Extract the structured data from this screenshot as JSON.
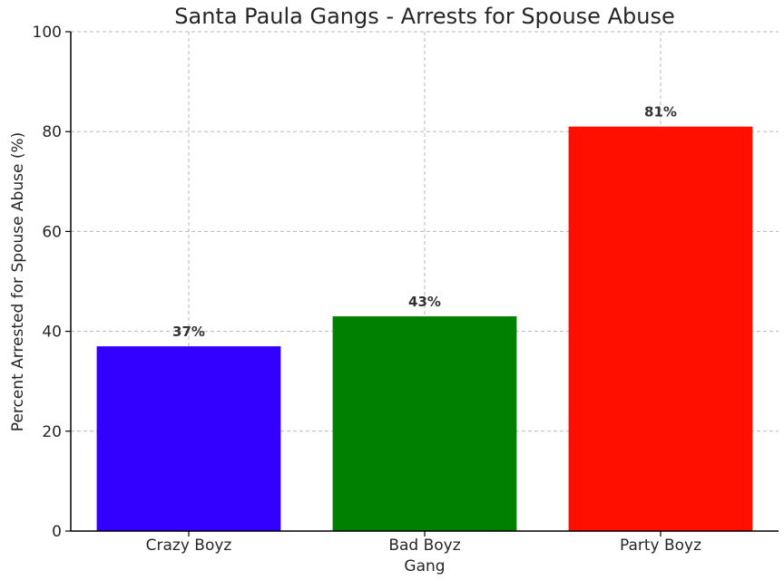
{
  "chart_data": {
    "type": "bar",
    "title": "Santa Paula Gangs - Arrests for Spouse Abuse",
    "xlabel": "Gang",
    "ylabel": "Percent Arrested for Spouse Abuse (%)",
    "categories": [
      "Crazy Boyz",
      "Bad Boyz",
      "Party Boyz"
    ],
    "values": [
      37,
      43,
      81
    ],
    "data_labels": [
      "37%",
      "43%",
      "81%"
    ],
    "colors": [
      "#3300ff",
      "#008000",
      "#ff0f00"
    ],
    "ylim": [
      0,
      100
    ],
    "yticks": [
      0,
      20,
      40,
      60,
      80,
      100
    ],
    "grid": true,
    "legend": "none"
  }
}
